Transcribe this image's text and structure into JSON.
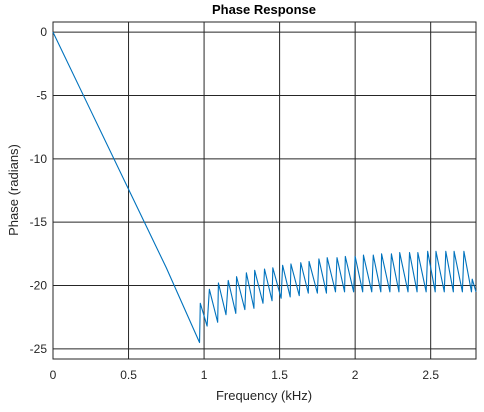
{
  "chart_data": {
    "type": "line",
    "title": "Phase Response",
    "xlabel": "Frequency (kHz)",
    "ylabel": "Phase (radians)",
    "xlim": [
      0,
      2.8
    ],
    "ylim": [
      -25.8,
      0.8
    ],
    "xticks": [
      0,
      0.5,
      1,
      1.5,
      2,
      2.5
    ],
    "xtick_labels": [
      "0",
      "0.5",
      "1",
      "1.5",
      "2",
      "2.5"
    ],
    "yticks": [
      0,
      -5,
      -10,
      -15,
      -20,
      -25
    ],
    "ytick_labels": [
      "0",
      "-5",
      "-10",
      "-15",
      "-20",
      "-25"
    ],
    "grid": true,
    "color": "#0072BD",
    "series": [
      {
        "x": [
          0,
          0.25,
          0.5,
          0.75,
          0.97,
          0.975,
          1.02,
          1.035,
          1.09,
          1.095,
          1.145,
          1.16,
          1.21,
          1.215,
          1.27,
          1.28,
          1.33,
          1.335,
          1.39,
          1.4,
          1.45,
          1.455,
          1.51,
          1.52,
          1.57,
          1.575,
          1.63,
          1.64,
          1.69,
          1.695,
          1.75,
          1.76,
          1.81,
          1.815,
          1.87,
          1.88,
          1.93,
          1.935,
          1.99,
          2.0,
          2.05,
          2.055,
          2.11,
          2.12,
          2.17,
          2.175,
          2.23,
          2.24,
          2.29,
          2.295,
          2.35,
          2.36,
          2.41,
          2.415,
          2.47,
          2.48,
          2.53,
          2.535,
          2.59,
          2.6,
          2.65,
          2.655,
          2.71,
          2.72,
          2.77,
          2.775,
          2.8
        ],
        "y": [
          0,
          -6.2,
          -12.4,
          -18.6,
          -24.5,
          -21.4,
          -23.2,
          -20.3,
          -22.9,
          -19.8,
          -22.3,
          -19.6,
          -22.2,
          -19.3,
          -21.9,
          -19.0,
          -21.8,
          -18.8,
          -21.4,
          -18.7,
          -21.2,
          -18.6,
          -21.0,
          -18.4,
          -20.9,
          -18.3,
          -20.8,
          -18.2,
          -20.6,
          -18.1,
          -20.6,
          -17.9,
          -20.6,
          -17.8,
          -20.5,
          -17.8,
          -20.5,
          -17.7,
          -20.5,
          -17.7,
          -20.5,
          -17.6,
          -20.5,
          -17.6,
          -20.5,
          -17.5,
          -20.5,
          -17.5,
          -20.5,
          -17.4,
          -20.5,
          -17.4,
          -20.5,
          -17.4,
          -20.5,
          -17.3,
          -20.5,
          -17.3,
          -20.5,
          -17.3,
          -20.5,
          -17.3,
          -20.5,
          -17.3,
          -20.5,
          -19.5,
          -20.5
        ]
      }
    ]
  }
}
